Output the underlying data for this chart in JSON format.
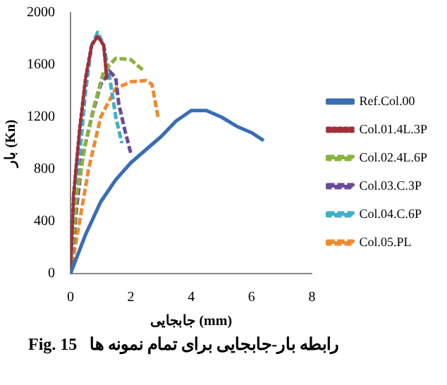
{
  "chart_data": {
    "type": "line",
    "xlabel": "جابجایی (mm)",
    "ylabel": "بار (Kn)",
    "annotations": [
      "Fig. 15   رابطه بار-جابجایی برای تمام نمونه ها"
    ],
    "xlim": [
      0,
      8
    ],
    "xticks": [
      0,
      2,
      4,
      6,
      8
    ],
    "ylim": [
      0,
      2000
    ],
    "yticks": [
      0,
      400,
      800,
      1200,
      1600,
      2000
    ],
    "grid": false,
    "legend": "right",
    "marker": "none",
    "series": [
      {
        "name": "Ref.Col.00",
        "color": "#3a6db5",
        "line_style": "solid",
        "x": [
          0,
          0.5,
          1,
          1.5,
          2,
          2.5,
          3,
          3.5,
          4,
          4.5,
          5,
          5.5,
          6,
          6.4
        ],
        "values": [
          0,
          300,
          550,
          720,
          850,
          950,
          1050,
          1170,
          1250,
          1250,
          1200,
          1130,
          1080,
          1020
        ]
      },
      {
        "name": "Col.01.4L.3P",
        "color": "#a0303a",
        "line_style": "dotted",
        "x": [
          0,
          0.1,
          0.3,
          0.5,
          0.7,
          0.9,
          1.1,
          1.2
        ],
        "values": [
          0,
          600,
          1100,
          1500,
          1750,
          1820,
          1750,
          1500
        ]
      },
      {
        "name": "Col.02.4L.6P",
        "color": "#8ab33c",
        "line_style": "dashed",
        "x": [
          0,
          0.2,
          0.5,
          0.8,
          1.1,
          1.5,
          2,
          2.4
        ],
        "values": [
          0,
          600,
          1000,
          1300,
          1550,
          1650,
          1640,
          1560
        ]
      },
      {
        "name": "Col.03.C.3P",
        "color": "#6a4a9a",
        "line_style": "dashed",
        "x": [
          0,
          0.2,
          0.4,
          0.7,
          1,
          1.3,
          1.5,
          1.6,
          1.8,
          2
        ],
        "values": [
          0,
          500,
          900,
          1200,
          1450,
          1550,
          1500,
          1300,
          1100,
          920
        ]
      },
      {
        "name": "Col.04.C.6P",
        "color": "#3fb0c8",
        "line_style": "dashed",
        "x": [
          0,
          0.1,
          0.3,
          0.5,
          0.7,
          0.9,
          1.1,
          1.3,
          1.5,
          1.7
        ],
        "values": [
          0,
          400,
          900,
          1400,
          1750,
          1850,
          1750,
          1500,
          1200,
          1000
        ]
      },
      {
        "name": "Col.05.PL",
        "color": "#f08a30",
        "line_style": "dashed",
        "x": [
          0,
          0.3,
          0.6,
          1,
          1.5,
          2,
          2.5,
          2.7,
          2.9
        ],
        "values": [
          0,
          400,
          800,
          1200,
          1420,
          1470,
          1480,
          1450,
          1200
        ]
      }
    ]
  }
}
